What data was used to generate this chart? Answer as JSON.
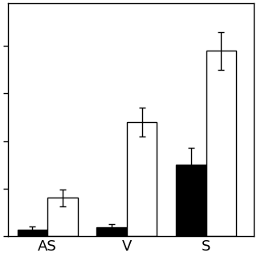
{
  "groups": [
    "AS",
    "V",
    "S"
  ],
  "black_values": [
    0.025,
    0.035,
    0.3
  ],
  "white_values": [
    0.16,
    0.48,
    0.78
  ],
  "black_errors": [
    0.015,
    0.015,
    0.07
  ],
  "white_errors": [
    0.035,
    0.06,
    0.08
  ],
  "bar_width": 0.38,
  "black_color": "#000000",
  "white_color": "#ffffff",
  "edge_color": "#000000",
  "background_color": "#ffffff",
  "ylim": [
    0,
    0.98
  ],
  "ytick_positions": [
    0.0,
    0.2,
    0.4,
    0.6,
    0.8
  ],
  "group_positions": [
    0.5,
    1.5,
    2.5
  ],
  "xlim": [
    0.0,
    3.1
  ],
  "capsize": 3,
  "linewidth": 1.0,
  "xlabel_fontsize": 13,
  "tick_labelsize": 9
}
